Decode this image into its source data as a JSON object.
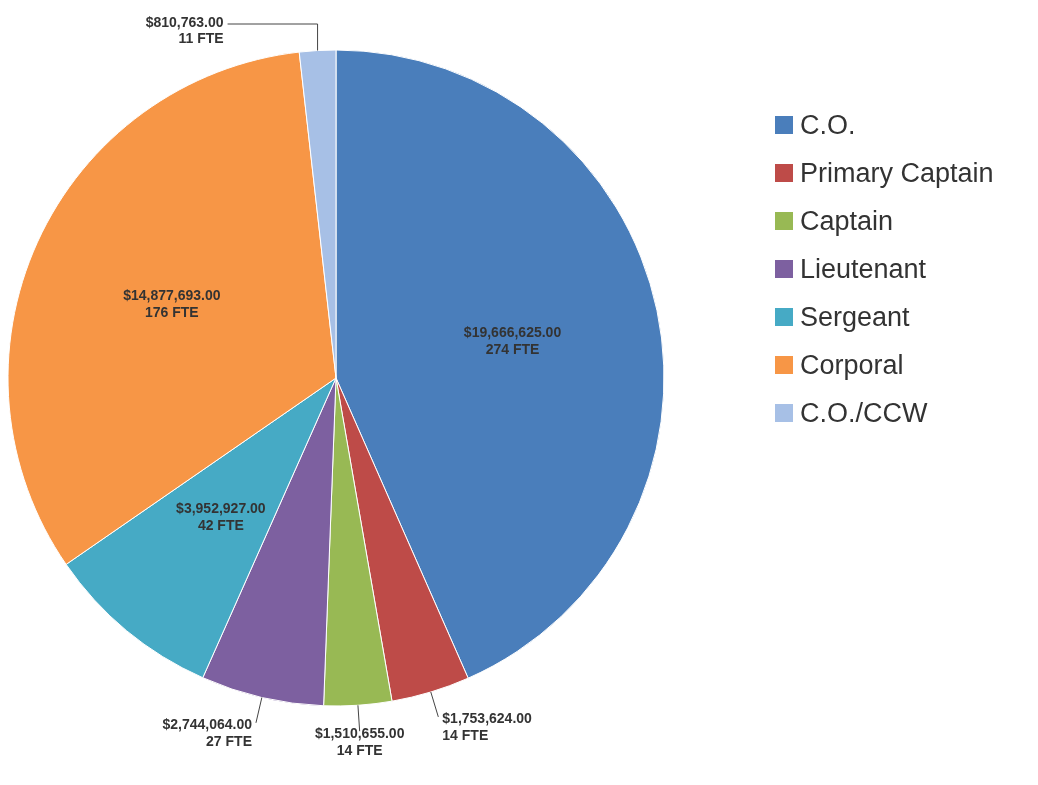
{
  "chart_data": {
    "type": "pie",
    "categories": [
      "C.O.",
      "Primary Captain",
      "Captain",
      "Lieutenant",
      "Sergeant",
      "Corporal",
      "C.O./CCW"
    ],
    "values": [
      19666625,
      1753624,
      1510655,
      2744064,
      3952927,
      14877693,
      810763
    ],
    "colors": [
      "#4a7ebb",
      "#be4b48",
      "#98b954",
      "#7d60a0",
      "#46aac5",
      "#f79646",
      "#a7c0e6"
    ],
    "value_labels": [
      "$19,666,625.00",
      "$1,753,624.00",
      "$1,510,655.00",
      "$2,744,064.00",
      "$3,952,927.00",
      "$14,877,693.00",
      "$810,763.00"
    ],
    "annotations": [
      {
        "text": "274 FTE",
        "x": "C.O."
      },
      {
        "text": "14 FTE",
        "x": "Primary Captain"
      },
      {
        "text": "14 FTE",
        "x": "Captain"
      },
      {
        "text": "27 FTE",
        "x": "Lieutenant"
      },
      {
        "text": "42 FTE",
        "x": "Sergeant"
      },
      {
        "text": "176 FTE",
        "x": "Corporal"
      },
      {
        "text": "11 FTE",
        "x": "C.O./CCW"
      }
    ],
    "legend": "right"
  }
}
